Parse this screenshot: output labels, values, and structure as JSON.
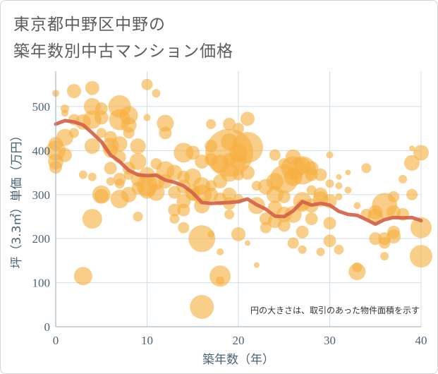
{
  "title_line1": "東京都中野区中野の",
  "title_line2": "築年数別中古マンション価格",
  "chart_data": {
    "type": "scatter",
    "xlabel": "築年数（年）",
    "ylabel": "坪（3.3㎡）単価（万円）",
    "xlim": [
      0,
      40
    ],
    "ylim": [
      0,
      580
    ],
    "xticks": [
      0,
      10,
      20,
      30,
      40
    ],
    "yticks": [
      0,
      100,
      200,
      300,
      400,
      500
    ],
    "grid": true,
    "annotation": "円の大きさは、取引のあった物件面積を示す",
    "colors": {
      "bubble": "#f5b041",
      "line": "#d4624a",
      "grid": "#cfdde9",
      "text": "#4a6275"
    },
    "bubbles": [
      [
        0,
        530,
        5
      ],
      [
        0,
        415,
        10
      ],
      [
        0,
        400,
        14
      ],
      [
        0,
        375,
        11
      ],
      [
        0,
        362,
        9
      ],
      [
        1,
        495,
        6
      ],
      [
        1,
        485,
        5
      ],
      [
        1,
        430,
        12
      ],
      [
        1,
        390,
        10
      ],
      [
        2,
        470,
        8
      ],
      [
        2,
        440,
        7
      ],
      [
        2,
        535,
        10
      ],
      [
        3,
        465,
        11
      ],
      [
        3,
        345,
        6
      ],
      [
        3,
        115,
        13
      ],
      [
        4,
        542,
        10
      ],
      [
        4,
        500,
        12
      ],
      [
        4,
        470,
        13
      ],
      [
        4,
        410,
        11
      ],
      [
        4,
        340,
        6
      ],
      [
        4,
        245,
        14
      ],
      [
        5,
        495,
        9
      ],
      [
        5,
        475,
        10
      ],
      [
        5,
        440,
        7
      ],
      [
        5,
        300,
        13
      ],
      [
        5,
        297,
        10
      ],
      [
        6,
        430,
        9
      ],
      [
        6,
        410,
        12
      ],
      [
        6,
        400,
        10
      ],
      [
        6,
        360,
        9
      ],
      [
        6,
        330,
        6
      ],
      [
        7,
        500,
        16
      ],
      [
        7,
        470,
        15
      ],
      [
        7,
        415,
        11
      ],
      [
        7,
        385,
        9
      ],
      [
        7,
        335,
        9
      ],
      [
        7,
        325,
        7
      ],
      [
        7,
        290,
        13
      ],
      [
        8,
        480,
        13
      ],
      [
        8,
        458,
        11
      ],
      [
        8,
        440,
        8
      ],
      [
        8,
        360,
        9
      ],
      [
        8,
        345,
        7
      ],
      [
        8,
        300,
        11
      ],
      [
        9,
        410,
        11
      ],
      [
        9,
        375,
        12
      ],
      [
        9,
        335,
        10
      ],
      [
        9,
        315,
        9
      ],
      [
        9,
        250,
        7
      ],
      [
        10,
        550,
        8
      ],
      [
        10,
        475,
        5
      ],
      [
        10,
        345,
        11
      ],
      [
        10,
        320,
        15
      ],
      [
        10,
        310,
        12
      ],
      [
        11,
        530,
        6
      ],
      [
        11,
        370,
        8
      ],
      [
        11,
        330,
        12
      ],
      [
        11,
        305,
        12
      ],
      [
        12,
        462,
        12
      ],
      [
        12,
        440,
        9
      ],
      [
        12,
        355,
        13
      ],
      [
        12,
        330,
        10
      ],
      [
        13,
        350,
        11
      ],
      [
        13,
        305,
        9
      ],
      [
        13,
        265,
        9
      ],
      [
        13,
        245,
        7
      ],
      [
        14,
        395,
        14
      ],
      [
        14,
        340,
        9
      ],
      [
        14,
        318,
        10
      ],
      [
        14,
        285,
        10
      ],
      [
        14,
        265,
        9
      ],
      [
        14,
        225,
        8
      ],
      [
        15,
        395,
        10
      ],
      [
        15,
        340,
        12
      ],
      [
        15,
        305,
        11
      ],
      [
        15,
        300,
        9
      ],
      [
        16,
        375,
        10
      ],
      [
        16,
        320,
        12
      ],
      [
        16,
        300,
        14
      ],
      [
        16,
        275,
        11
      ],
      [
        16,
        200,
        19
      ],
      [
        16,
        45,
        17
      ],
      [
        17,
        460,
        7
      ],
      [
        17,
        410,
        9
      ],
      [
        17,
        380,
        9
      ],
      [
        17,
        320,
        8
      ],
      [
        17,
        300,
        10
      ],
      [
        17,
        210,
        5
      ],
      [
        18,
        370,
        13
      ],
      [
        18,
        330,
        10
      ],
      [
        18,
        290,
        9
      ],
      [
        18,
        170,
        5
      ],
      [
        18,
        115,
        15
      ],
      [
        18,
        105,
        6
      ],
      [
        19,
        460,
        9
      ],
      [
        19,
        420,
        12
      ],
      [
        19,
        395,
        34
      ],
      [
        19,
        380,
        9
      ],
      [
        19,
        350,
        13
      ],
      [
        19,
        300,
        10
      ],
      [
        19,
        280,
        9
      ],
      [
        19,
        255,
        7
      ],
      [
        20,
        450,
        8
      ],
      [
        20,
        395,
        13
      ],
      [
        20,
        375,
        11
      ],
      [
        20,
        345,
        8
      ],
      [
        20,
        290,
        7
      ],
      [
        20,
        210,
        10
      ],
      [
        21,
        472,
        10
      ],
      [
        21,
        407,
        22
      ],
      [
        21,
        350,
        10
      ],
      [
        21,
        190,
        4
      ],
      [
        22,
        320,
        7
      ],
      [
        22,
        275,
        12
      ],
      [
        22,
        140,
        4
      ],
      [
        23,
        318,
        11
      ],
      [
        23,
        245,
        9
      ],
      [
        23,
        225,
        8
      ],
      [
        24,
        390,
        8
      ],
      [
        24,
        330,
        12
      ],
      [
        24,
        300,
        12
      ],
      [
        24,
        270,
        10
      ],
      [
        24,
        240,
        10
      ],
      [
        25,
        370,
        8
      ],
      [
        25,
        335,
        20
      ],
      [
        25,
        295,
        9
      ],
      [
        25,
        255,
        11
      ],
      [
        25,
        230,
        9
      ],
      [
        26,
        385,
        11
      ],
      [
        26,
        360,
        17
      ],
      [
        26,
        340,
        13
      ],
      [
        26,
        255,
        12
      ],
      [
        26,
        190,
        8
      ],
      [
        27,
        365,
        12
      ],
      [
        27,
        355,
        20
      ],
      [
        27,
        285,
        13
      ],
      [
        27,
        275,
        9
      ],
      [
        27,
        215,
        9
      ],
      [
        27,
        175,
        6
      ],
      [
        28,
        360,
        10
      ],
      [
        28,
        345,
        9
      ],
      [
        28,
        310,
        7
      ],
      [
        28,
        275,
        10
      ],
      [
        28,
        245,
        9
      ],
      [
        29,
        345,
        9
      ],
      [
        29,
        300,
        10
      ],
      [
        29,
        290,
        11
      ],
      [
        29,
        170,
        6
      ],
      [
        30,
        390,
        5
      ],
      [
        30,
        325,
        6
      ],
      [
        30,
        285,
        10
      ],
      [
        30,
        235,
        9
      ],
      [
        30,
        195,
        9
      ],
      [
        31,
        340,
        4
      ],
      [
        31,
        320,
        5
      ],
      [
        31,
        295,
        5
      ],
      [
        31,
        175,
        7
      ],
      [
        32,
        350,
        4
      ],
      [
        32,
        310,
        5
      ],
      [
        33,
        275,
        5
      ],
      [
        33,
        135,
        7
      ],
      [
        33,
        125,
        12
      ],
      [
        34,
        360,
        7
      ],
      [
        34,
        255,
        8
      ],
      [
        35,
        260,
        10
      ],
      [
        35,
        250,
        11
      ],
      [
        35,
        200,
        9
      ],
      [
        36,
        275,
        18
      ],
      [
        36,
        200,
        9
      ],
      [
        36,
        190,
        8
      ],
      [
        36,
        160,
        6
      ],
      [
        37,
        295,
        8
      ],
      [
        37,
        260,
        10
      ],
      [
        37,
        215,
        9
      ],
      [
        37,
        205,
        10
      ],
      [
        38,
        335,
        6
      ],
      [
        38,
        255,
        9
      ],
      [
        39,
        405,
        4
      ],
      [
        39,
        372,
        11
      ],
      [
        39,
        300,
        8
      ],
      [
        40,
        395,
        11
      ],
      [
        40,
        225,
        15
      ],
      [
        40,
        160,
        16
      ]
    ],
    "trend_x": [
      0,
      1,
      2,
      3,
      4,
      5,
      6,
      7,
      8,
      9,
      10,
      11,
      12,
      13,
      14,
      15,
      16,
      17,
      18,
      19,
      20,
      21,
      22,
      23,
      24,
      25,
      26,
      27,
      28,
      29,
      30,
      31,
      32,
      33,
      34,
      35,
      36,
      37,
      38,
      39,
      40
    ],
    "trend_y": [
      460,
      468,
      465,
      458,
      440,
      420,
      390,
      375,
      355,
      345,
      343,
      344,
      333,
      328,
      320,
      304,
      282,
      280,
      281,
      282,
      284,
      290,
      277,
      267,
      251,
      250,
      263,
      284,
      276,
      280,
      276,
      262,
      255,
      253,
      243,
      233,
      243,
      248,
      247,
      248,
      241
    ]
  }
}
